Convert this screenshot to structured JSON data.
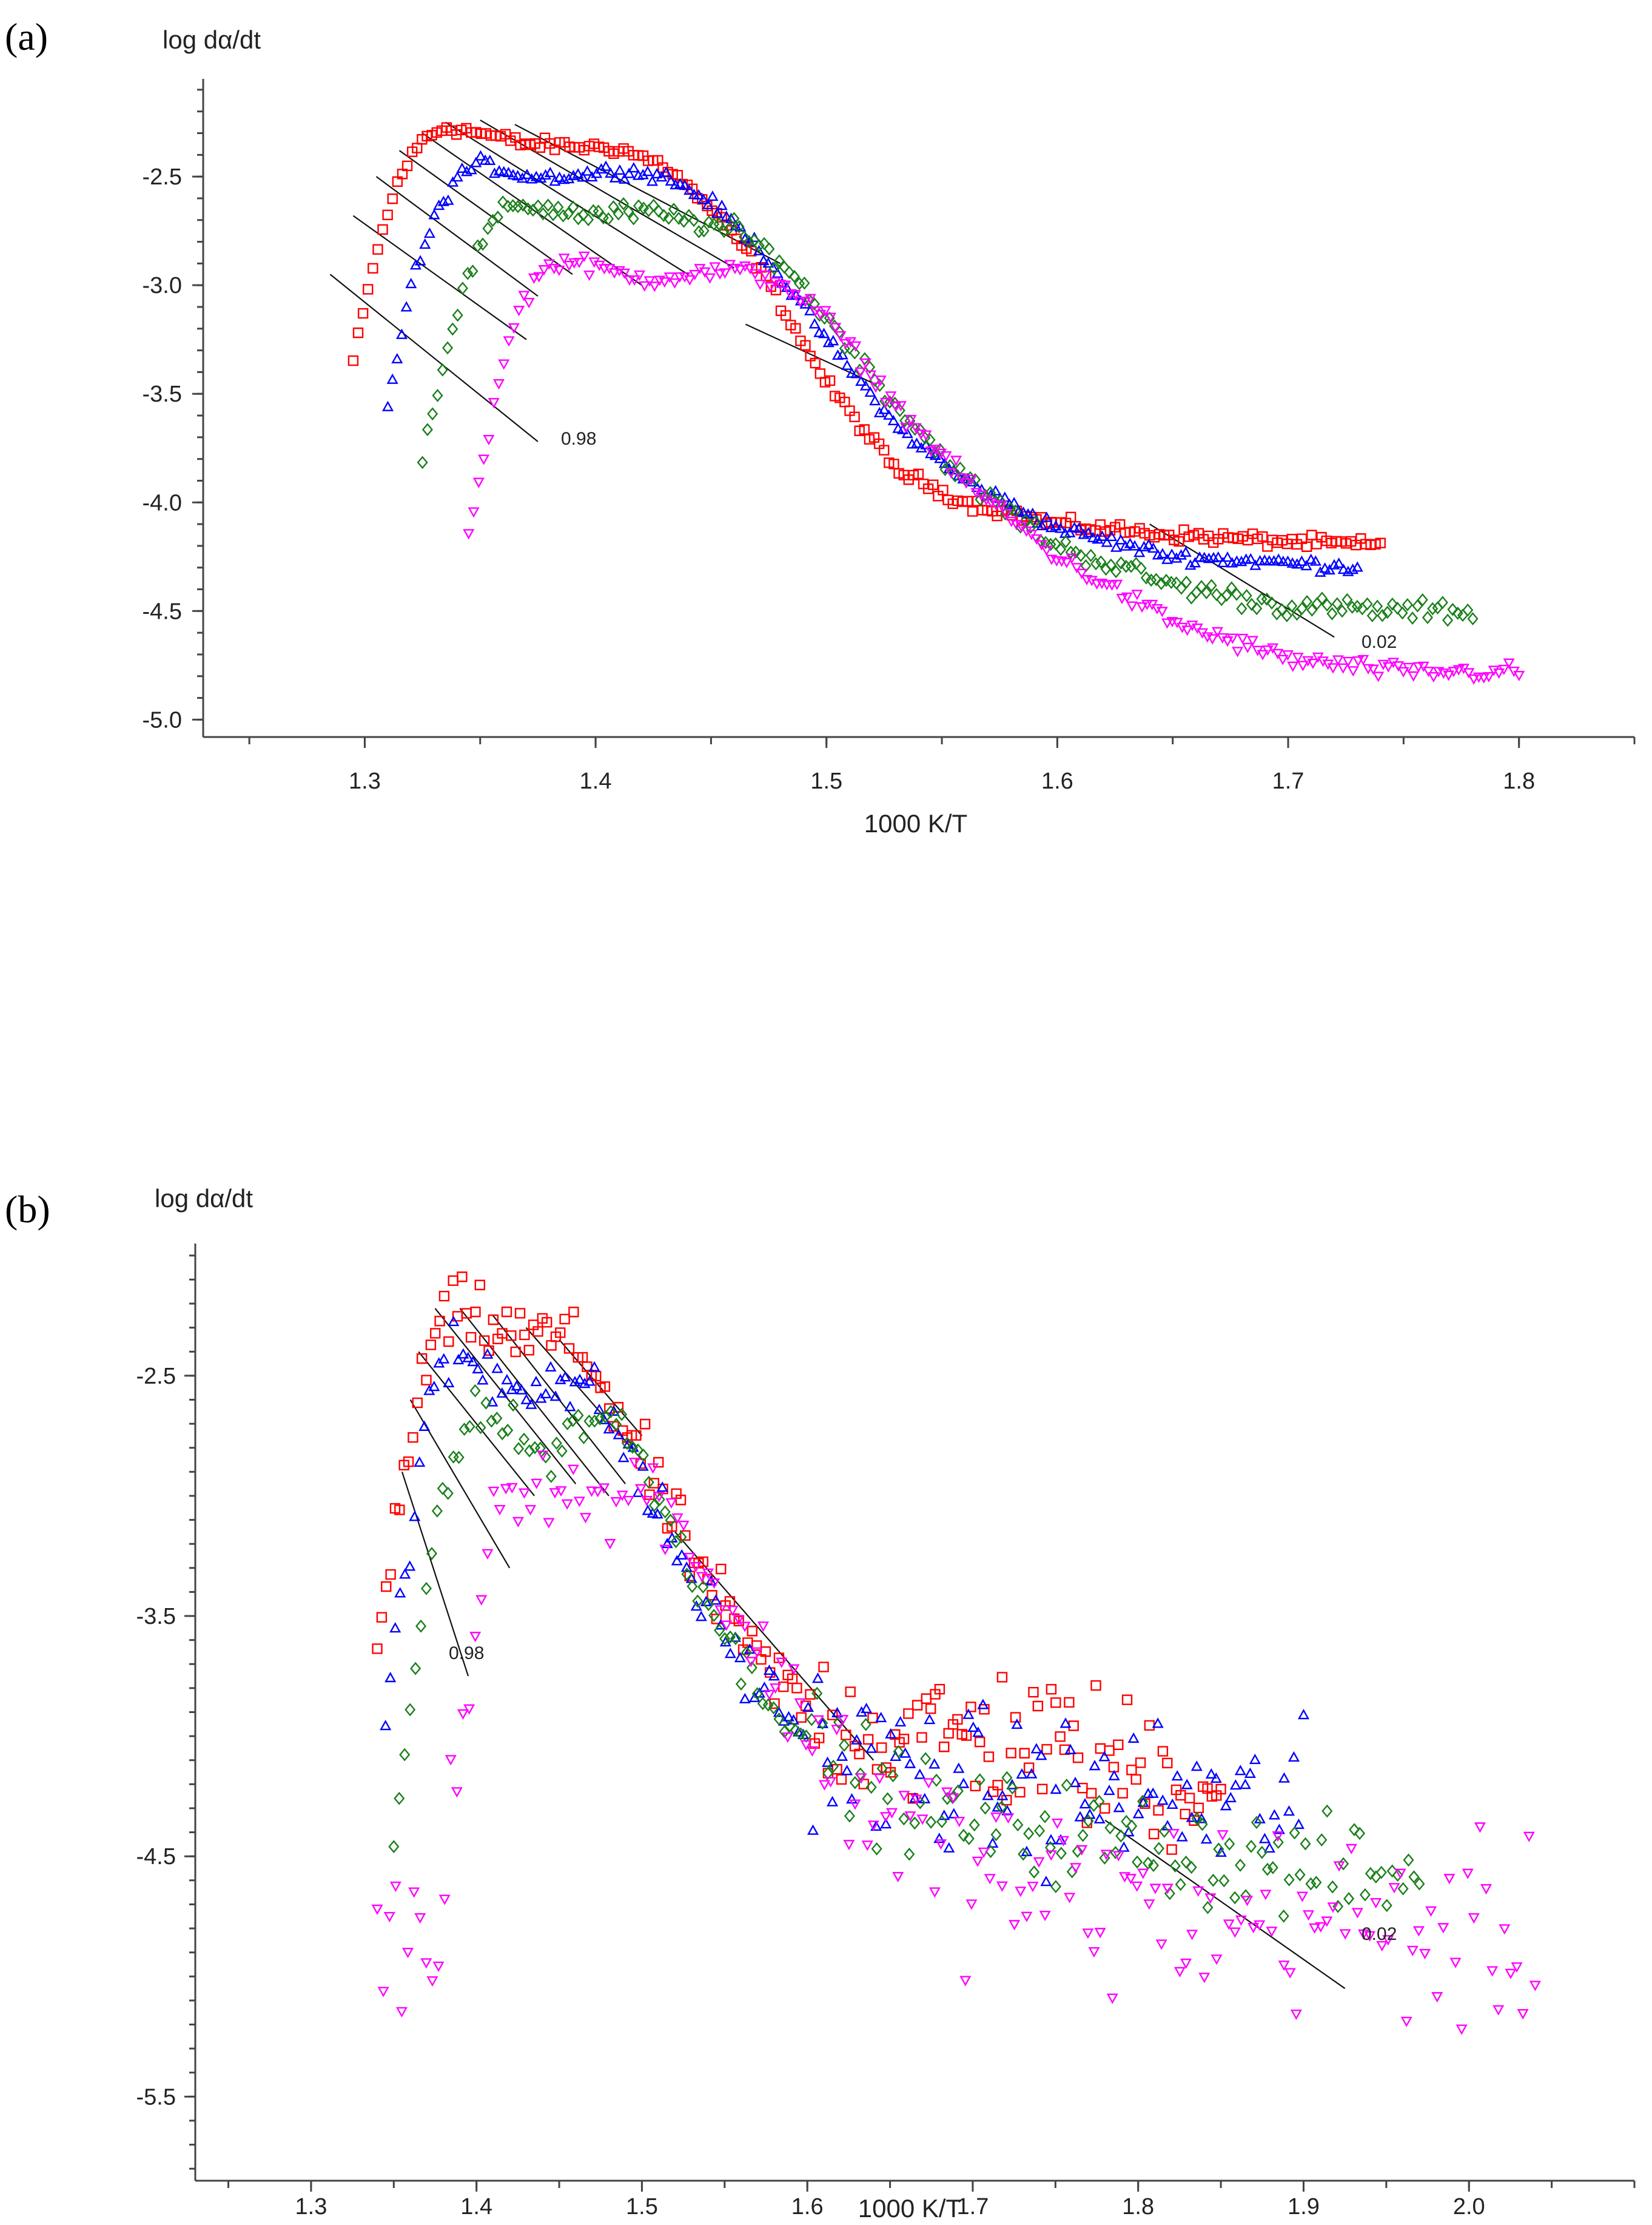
{
  "chart_data": [
    {
      "panel": "(a)",
      "type": "scatter",
      "xlabel": "1000 K/T",
      "ylabel": "log dα/dt",
      "xlim": [
        1.23,
        1.85
      ],
      "ylim": [
        -5.08,
        -2.05
      ],
      "xticks": [
        "1.3",
        "1.4",
        "1.5",
        "1.6",
        "1.7",
        "1.8"
      ],
      "yticks": [
        "-2.5",
        "-3.0",
        "-3.5",
        "-4.0",
        "-4.5",
        "-5.0"
      ],
      "grid": false,
      "isoconversion_labels": [
        "0.98",
        "0.02"
      ],
      "series": [
        {
          "name": "red squares",
          "color": "#ff0000",
          "marker": "square",
          "noise": 0.025,
          "x": [
            1.295,
            1.305,
            1.315,
            1.325,
            1.335,
            1.35,
            1.37,
            1.39,
            1.41,
            1.43,
            1.45,
            1.47,
            1.5,
            1.53,
            1.56,
            1.6,
            1.65,
            1.7,
            1.74
          ],
          "y": [
            -3.35,
            -2.85,
            -2.5,
            -2.33,
            -2.27,
            -2.3,
            -2.35,
            -2.36,
            -2.37,
            -2.45,
            -2.65,
            -2.9,
            -3.45,
            -3.85,
            -4.0,
            -4.1,
            -4.15,
            -4.18,
            -4.2
          ]
        },
        {
          "name": "blue triangles",
          "color": "#0000ff",
          "marker": "triangle-up",
          "noise": 0.025,
          "x": [
            1.31,
            1.32,
            1.33,
            1.34,
            1.35,
            1.37,
            1.39,
            1.41,
            1.43,
            1.45,
            1.47,
            1.5,
            1.53,
            1.56,
            1.6,
            1.65,
            1.7,
            1.73
          ],
          "y": [
            -3.55,
            -3.0,
            -2.7,
            -2.5,
            -2.44,
            -2.5,
            -2.5,
            -2.47,
            -2.5,
            -2.62,
            -2.82,
            -3.25,
            -3.65,
            -3.9,
            -4.12,
            -4.25,
            -4.28,
            -4.3
          ]
        },
        {
          "name": "green diamonds",
          "color": "#1a7f1a",
          "marker": "diamond",
          "noise": 0.04,
          "x": [
            1.325,
            1.335,
            1.345,
            1.355,
            1.365,
            1.38,
            1.4,
            1.42,
            1.44,
            1.46,
            1.48,
            1.5,
            1.53,
            1.56,
            1.6,
            1.65,
            1.7,
            1.75,
            1.78
          ],
          "y": [
            -3.8,
            -3.3,
            -2.95,
            -2.72,
            -2.62,
            -2.65,
            -2.68,
            -2.66,
            -2.7,
            -2.75,
            -2.88,
            -3.15,
            -3.55,
            -3.9,
            -4.2,
            -4.38,
            -4.48,
            -4.5,
            -4.5
          ]
        },
        {
          "name": "magenta triangles",
          "color": "#ff00ff",
          "marker": "triangle-down",
          "noise": 0.035,
          "x": [
            1.345,
            1.355,
            1.365,
            1.375,
            1.385,
            1.4,
            1.42,
            1.44,
            1.46,
            1.48,
            1.5,
            1.53,
            1.56,
            1.6,
            1.65,
            1.7,
            1.75,
            1.8
          ],
          "y": [
            -4.15,
            -3.6,
            -3.15,
            -2.95,
            -2.88,
            -2.92,
            -2.97,
            -2.95,
            -2.93,
            -2.98,
            -3.15,
            -3.55,
            -3.9,
            -4.25,
            -4.55,
            -4.72,
            -4.78,
            -4.78
          ]
        }
      ],
      "isoconversion_lines": [
        {
          "x": [
            1.285,
            1.375
          ],
          "y": [
            -2.95,
            -3.72
          ]
        },
        {
          "x": [
            1.295,
            1.37
          ],
          "y": [
            -2.68,
            -3.25
          ]
        },
        {
          "x": [
            1.305,
            1.375
          ],
          "y": [
            -2.5,
            -3.05
          ]
        },
        {
          "x": [
            1.315,
            1.39
          ],
          "y": [
            -2.38,
            -2.95
          ]
        },
        {
          "x": [
            1.325,
            1.42
          ],
          "y": [
            -2.3,
            -3.0
          ]
        },
        {
          "x": [
            1.335,
            1.44
          ],
          "y": [
            -2.25,
            -2.95
          ]
        },
        {
          "x": [
            1.35,
            1.46
          ],
          "y": [
            -2.24,
            -2.92
          ]
        },
        {
          "x": [
            1.365,
            1.48
          ],
          "y": [
            -2.26,
            -2.9
          ]
        },
        {
          "x": [
            1.465,
            1.52
          ],
          "y": [
            -3.18,
            -3.45
          ]
        },
        {
          "x": [
            1.64,
            1.72
          ],
          "y": [
            -4.1,
            -4.62
          ]
        }
      ]
    },
    {
      "panel": "(b)",
      "type": "scatter",
      "xlabel": "1000 K/T",
      "ylabel": "log dα/dt",
      "xlim": [
        1.23,
        2.1
      ],
      "ylim": [
        -5.85,
        -1.95
      ],
      "xticks": [
        "1.3",
        "1.4",
        "1.5",
        "1.6",
        "1.7",
        "1.8",
        "1.9",
        "2.0"
      ],
      "yticks": [
        "-2.5",
        "-3.5",
        "-4.5",
        "-5.5"
      ],
      "grid": false,
      "isoconversion_labels": [
        "0.98",
        "0.02"
      ],
      "series": [
        {
          "name": "red squares",
          "color": "#ff0000",
          "marker": "square",
          "noise": 0.12,
          "x": [
            1.34,
            1.35,
            1.36,
            1.37,
            1.38,
            1.39,
            1.41,
            1.43,
            1.45,
            1.47,
            1.5,
            1.53,
            1.56,
            1.6,
            1.65,
            1.7,
            1.75,
            1.8,
            1.85
          ],
          "y": [
            -3.65,
            -3.2,
            -2.75,
            -2.45,
            -2.27,
            -2.24,
            -2.3,
            -2.35,
            -2.33,
            -2.45,
            -2.85,
            -3.25,
            -3.6,
            -3.9,
            -4.0,
            -4.0,
            -4.05,
            -4.15,
            -4.2
          ]
        },
        {
          "name": "blue triangles",
          "color": "#0000ff",
          "marker": "triangle-up",
          "noise": 0.12,
          "x": [
            1.345,
            1.355,
            1.365,
            1.375,
            1.385,
            1.4,
            1.42,
            1.44,
            1.46,
            1.48,
            1.5,
            1.53,
            1.56,
            1.6,
            1.65,
            1.7,
            1.75,
            1.8,
            1.85,
            1.9
          ],
          "y": [
            -3.95,
            -3.4,
            -2.9,
            -2.55,
            -2.4,
            -2.45,
            -2.55,
            -2.5,
            -2.55,
            -2.65,
            -2.95,
            -3.35,
            -3.7,
            -4.0,
            -4.15,
            -4.2,
            -4.25,
            -4.25,
            -4.3,
            -4.3
          ]
        },
        {
          "name": "green diamonds",
          "color": "#1a7f1a",
          "marker": "diamond",
          "noise": 0.08,
          "x": [
            1.35,
            1.36,
            1.37,
            1.38,
            1.39,
            1.4,
            1.42,
            1.44,
            1.46,
            1.48,
            1.5,
            1.53,
            1.56,
            1.6,
            1.65,
            1.7,
            1.75,
            1.8,
            1.85,
            1.9,
            1.95,
            1.97
          ],
          "y": [
            -4.45,
            -3.9,
            -3.35,
            -2.95,
            -2.75,
            -2.62,
            -2.72,
            -2.85,
            -2.7,
            -2.65,
            -2.85,
            -3.3,
            -3.7,
            -4.0,
            -4.25,
            -4.35,
            -4.4,
            -4.45,
            -4.5,
            -4.55,
            -4.6,
            -4.55
          ]
        },
        {
          "name": "magenta triangles",
          "color": "#ff00ff",
          "marker": "triangle-down",
          "noise": 0.15,
          "x": [
            1.34,
            1.36,
            1.38,
            1.39,
            1.4,
            1.41,
            1.43,
            1.45,
            1.47,
            1.49,
            1.51,
            1.53,
            1.56,
            1.6,
            1.65,
            1.7,
            1.75,
            1.8,
            1.85,
            1.9,
            1.95,
            2.0,
            2.04
          ],
          "y": [
            -4.8,
            -4.9,
            -4.75,
            -4.0,
            -3.5,
            -3.05,
            -2.9,
            -2.95,
            -3.05,
            -3.0,
            -2.95,
            -3.2,
            -3.55,
            -3.95,
            -4.35,
            -4.55,
            -4.65,
            -4.7,
            -4.75,
            -4.75,
            -4.8,
            -4.85,
            -4.85
          ]
        }
      ],
      "isoconversion_lines": [
        {
          "x": [
            1.355,
            1.395
          ],
          "y": [
            -2.9,
            -3.75
          ]
        },
        {
          "x": [
            1.36,
            1.42
          ],
          "y": [
            -2.6,
            -3.3
          ]
        },
        {
          "x": [
            1.365,
            1.435
          ],
          "y": [
            -2.4,
            -3.0
          ]
        },
        {
          "x": [
            1.375,
            1.46
          ],
          "y": [
            -2.22,
            -2.95
          ]
        },
        {
          "x": [
            1.39,
            1.48
          ],
          "y": [
            -2.22,
            -3.0
          ]
        },
        {
          "x": [
            1.41,
            1.49
          ],
          "y": [
            -2.25,
            -2.95
          ]
        },
        {
          "x": [
            1.43,
            1.5
          ],
          "y": [
            -2.3,
            -2.85
          ]
        },
        {
          "x": [
            1.45,
            1.5
          ],
          "y": [
            -2.35,
            -2.75
          ]
        },
        {
          "x": [
            1.52,
            1.64
          ],
          "y": [
            -3.15,
            -4.1
          ]
        },
        {
          "x": [
            1.78,
            1.925
          ],
          "y": [
            -4.35,
            -5.05
          ]
        }
      ]
    }
  ]
}
